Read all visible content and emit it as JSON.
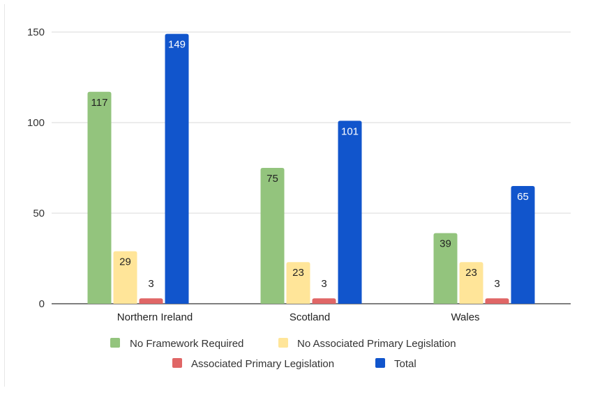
{
  "chart_data": {
    "type": "bar",
    "categories": [
      "Northern Ireland",
      "Scotland",
      "Wales"
    ],
    "series": [
      {
        "name": "No Framework Required",
        "values": [
          117,
          75,
          39
        ],
        "color": "#93c47d",
        "label_color": "#222222"
      },
      {
        "name": "No Associated Primary Legislation",
        "values": [
          29,
          23,
          23
        ],
        "color": "#ffe599",
        "label_color": "#222222"
      },
      {
        "name": "Associated Primary Legislation",
        "values": [
          3,
          3,
          3
        ],
        "color": "#e06666",
        "label_color": "#222222"
      },
      {
        "name": "Total",
        "values": [
          149,
          101,
          65
        ],
        "color": "#1155cc",
        "label_color": "#ffffff"
      }
    ],
    "yticks": [
      "0",
      "50",
      "100",
      "150"
    ],
    "ylim": [
      0,
      150
    ],
    "grid": true,
    "legend": "bottom"
  }
}
